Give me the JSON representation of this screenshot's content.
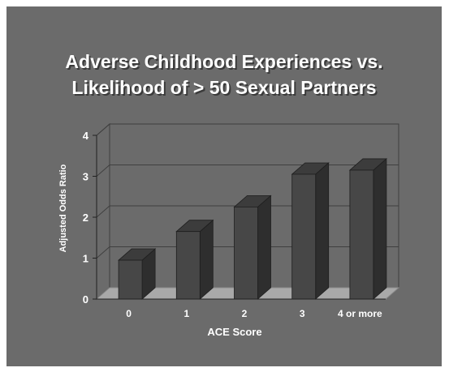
{
  "slide": {
    "title_line1": "Adverse Childhood Experiences vs.",
    "title_line2": "Likelihood of  > 50  Sexual Partners"
  },
  "chart_data": {
    "type": "bar",
    "title": "Adverse Childhood Experiences vs. Likelihood of  > 50  Sexual Partners",
    "categories": [
      "0",
      "1",
      "2",
      "3",
      "4 or more"
    ],
    "values": [
      0.95,
      1.65,
      2.25,
      3.05,
      3.15
    ],
    "xlabel": "ACE Score",
    "ylabel": "Adjusted Odds Ratio",
    "ylim": [
      0,
      4
    ],
    "yticks": [
      "0",
      "1",
      "2",
      "3",
      "4"
    ],
    "grid": true,
    "legend": "none",
    "style": "3d",
    "colors": {
      "background": "#6b6b6b",
      "bar_front": "#474747",
      "bar_side": "#2e2e2e",
      "bar_top": "#3c3c3c",
      "floor": "#a9a9a9",
      "wall": "#6b6b6b",
      "grid": "#3f3f3f",
      "text": "#ffffff"
    }
  }
}
